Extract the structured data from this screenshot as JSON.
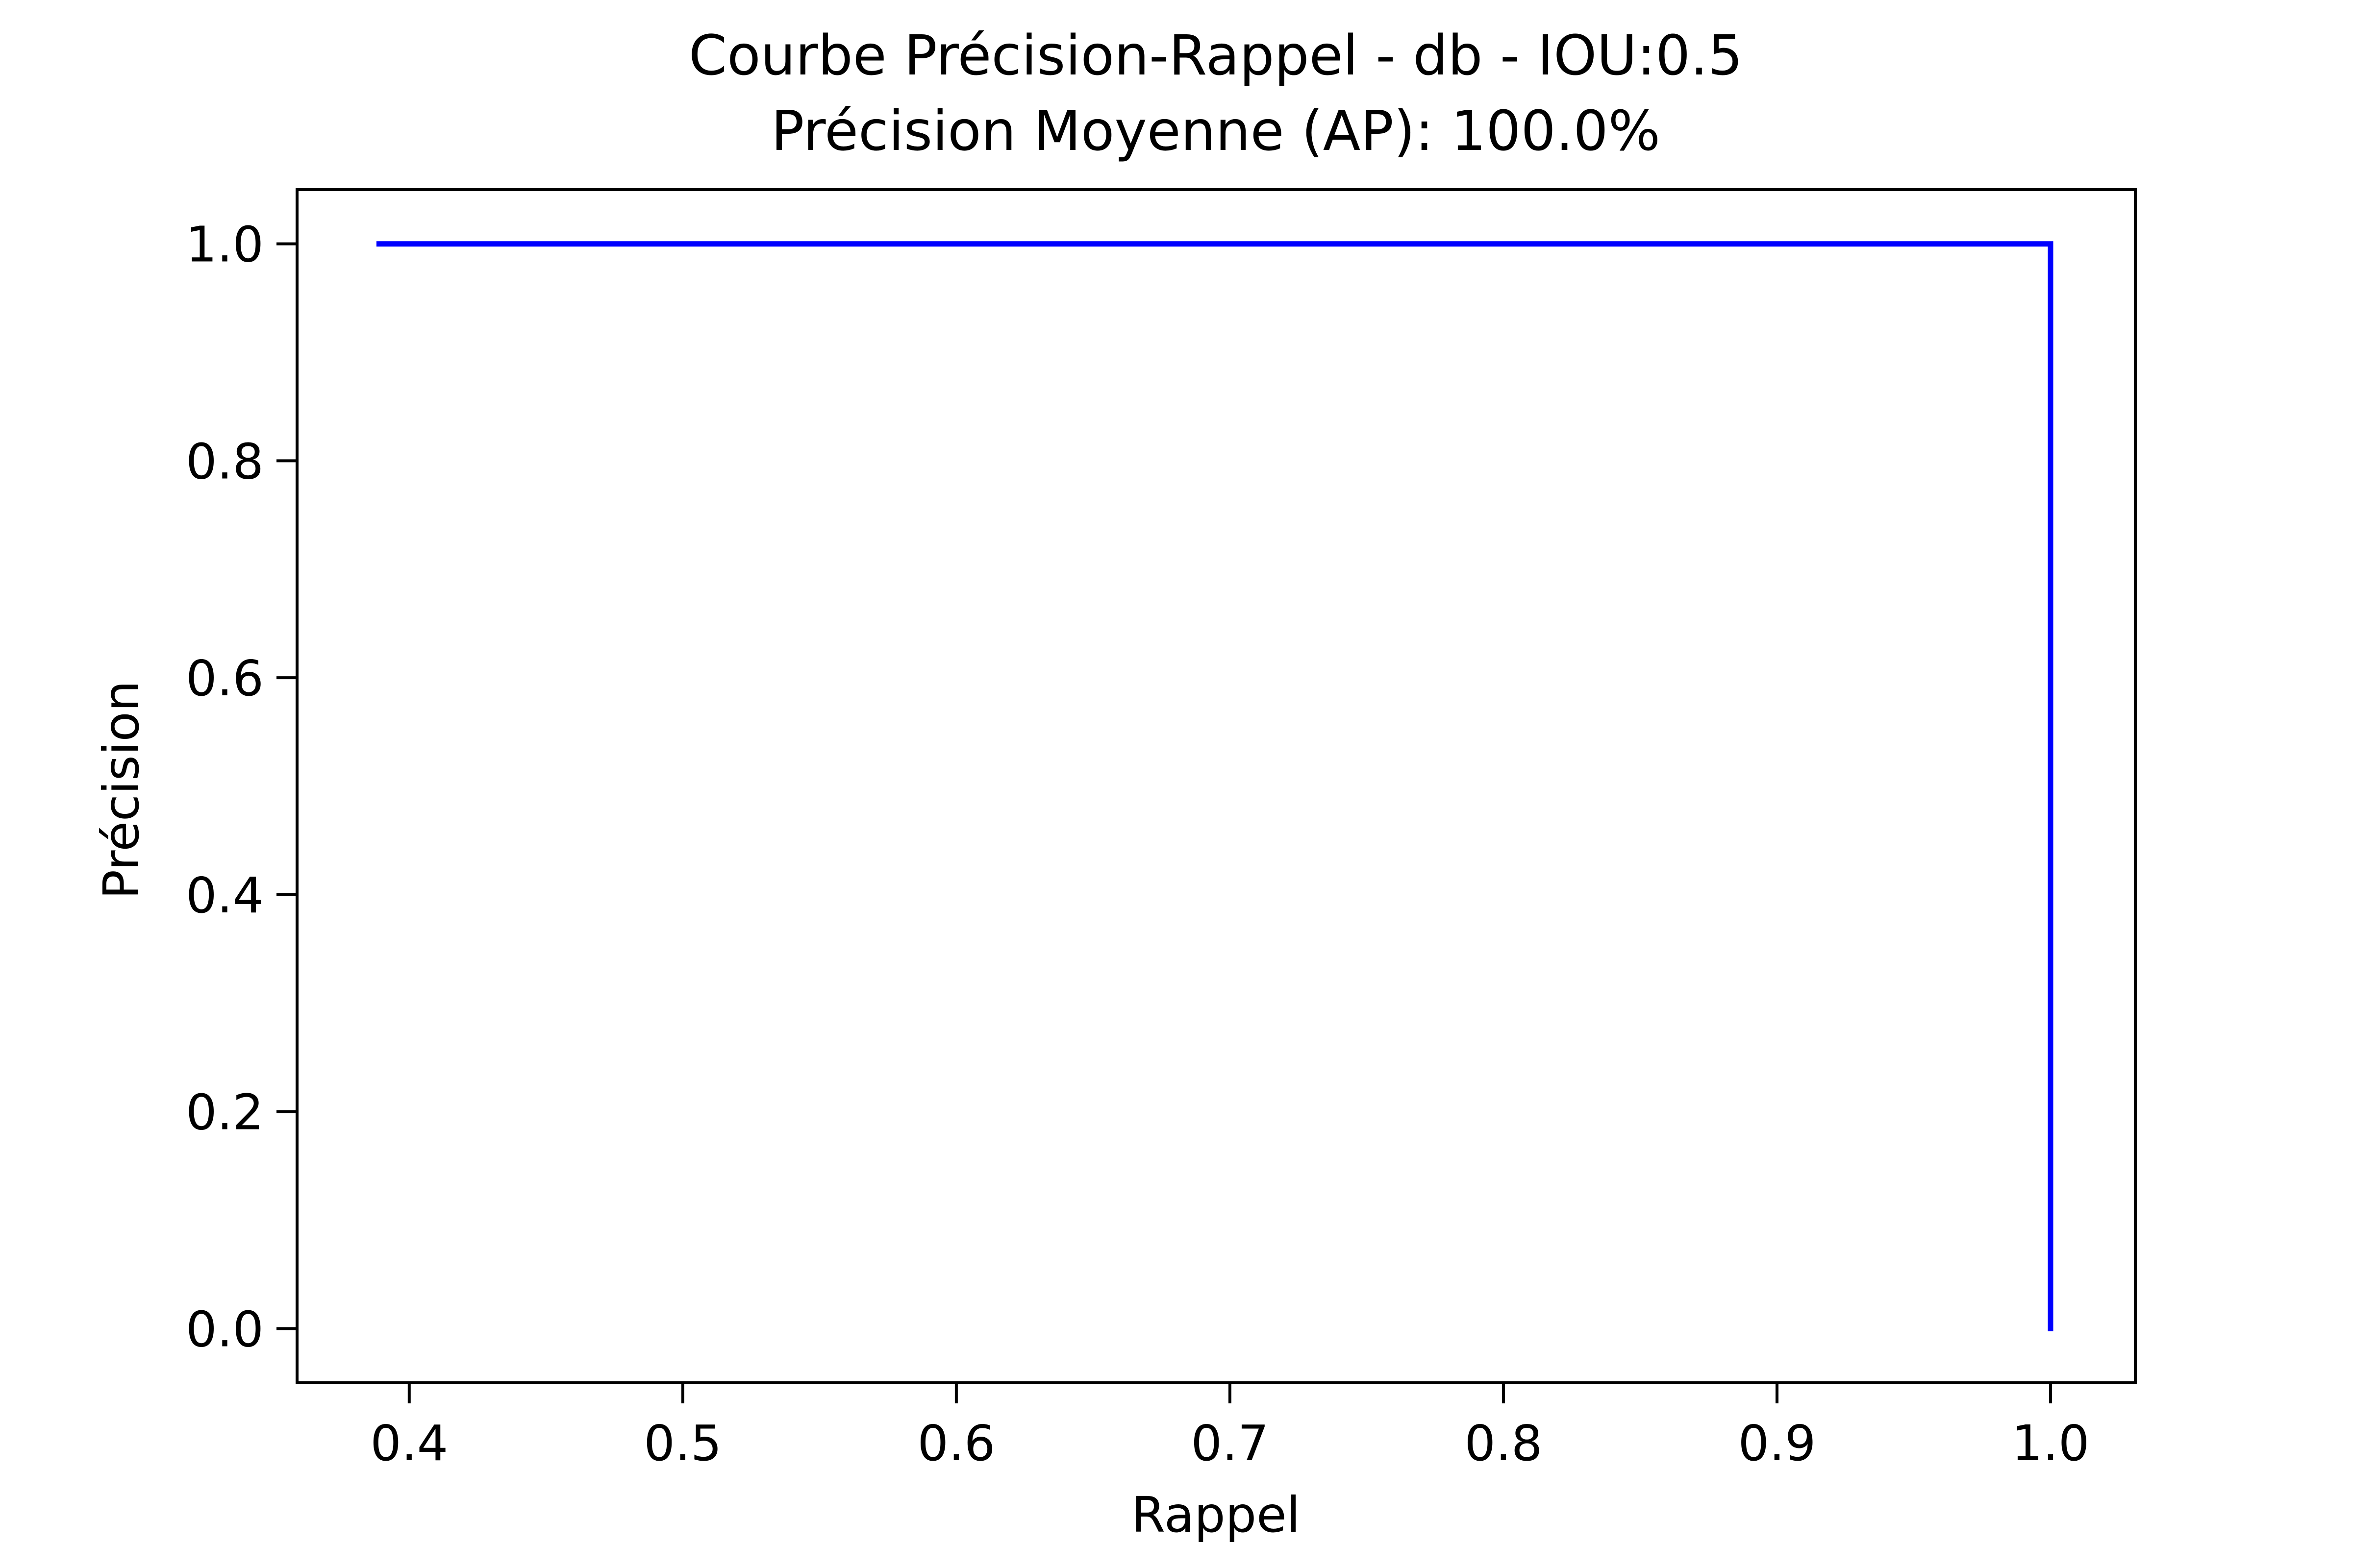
{
  "chart_data": {
    "type": "line",
    "title": "Courbe Précision-Rappel - db - IOU:0.5",
    "subtitle": "Précision Moyenne (AP): 100.0%",
    "xlabel": "Rappel",
    "ylabel": "Précision",
    "xlim": [
      0.359,
      1.031
    ],
    "ylim": [
      -0.05,
      1.05
    ],
    "xticks": [
      "0.4",
      "0.5",
      "0.6",
      "0.7",
      "0.8",
      "0.9",
      "1.0"
    ],
    "yticks": [
      "0.0",
      "0.2",
      "0.4",
      "0.6",
      "0.8",
      "1.0"
    ],
    "grid": false,
    "series": [
      {
        "color": "#0000ff",
        "x": [
          0.389,
          1.0,
          1.0
        ],
        "y": [
          1.0,
          1.0,
          0.0
        ]
      }
    ]
  }
}
